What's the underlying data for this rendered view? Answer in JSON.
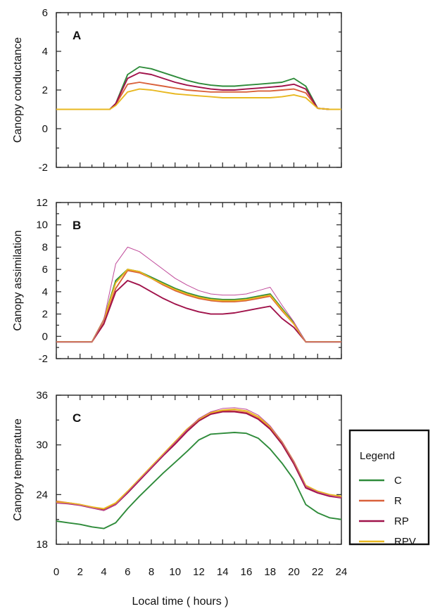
{
  "chart_data": [
    {
      "type": "line",
      "panel": "A",
      "ylabel": "Canopy conductance",
      "xlim": [
        0,
        24
      ],
      "ylim": [
        -2,
        6
      ],
      "yticks": [
        -2,
        0,
        2,
        4,
        6
      ],
      "x": [
        0,
        1,
        2,
        3,
        4,
        4.5,
        5,
        6,
        7,
        8,
        9,
        10,
        11,
        12,
        13,
        14,
        15,
        16,
        17,
        18,
        19,
        20,
        21,
        22,
        23,
        24
      ],
      "series": [
        {
          "name": "C",
          "color": "#2e8b3a",
          "values": [
            1.0,
            1.0,
            1.0,
            1.0,
            1.0,
            1.0,
            1.3,
            2.8,
            3.2,
            3.1,
            2.9,
            2.7,
            2.5,
            2.35,
            2.25,
            2.2,
            2.2,
            2.25,
            2.3,
            2.35,
            2.4,
            2.6,
            2.2,
            1.05,
            1.0,
            1.0
          ]
        },
        {
          "name": "R",
          "color": "#d9603a",
          "values": [
            1.0,
            1.0,
            1.0,
            1.0,
            1.0,
            1.0,
            1.25,
            2.3,
            2.4,
            2.3,
            2.2,
            2.1,
            2.0,
            1.95,
            1.9,
            1.9,
            1.9,
            1.9,
            1.95,
            1.95,
            2.0,
            2.05,
            1.85,
            1.05,
            1.0,
            1.0
          ]
        },
        {
          "name": "RP",
          "color": "#a0124a",
          "values": [
            1.0,
            1.0,
            1.0,
            1.0,
            1.0,
            1.0,
            1.3,
            2.6,
            2.9,
            2.8,
            2.6,
            2.4,
            2.25,
            2.15,
            2.05,
            2.0,
            2.0,
            2.05,
            2.1,
            2.15,
            2.2,
            2.3,
            2.05,
            1.05,
            1.0,
            1.0
          ]
        },
        {
          "name": "RPV",
          "color": "#e8b820",
          "values": [
            1.0,
            1.0,
            1.0,
            1.0,
            1.0,
            1.0,
            1.2,
            1.9,
            2.05,
            2.0,
            1.9,
            1.8,
            1.75,
            1.7,
            1.65,
            1.6,
            1.6,
            1.6,
            1.6,
            1.6,
            1.65,
            1.75,
            1.6,
            1.05,
            1.0,
            1.0
          ]
        }
      ]
    },
    {
      "type": "line",
      "panel": "B",
      "ylabel": "Canopy assimilation",
      "xlim": [
        0,
        24
      ],
      "ylim": [
        -2,
        12
      ],
      "yticks": [
        -2,
        0,
        2,
        4,
        6,
        8,
        10,
        12
      ],
      "x": [
        0,
        1,
        2,
        3,
        4,
        5,
        6,
        7,
        8,
        9,
        10,
        11,
        12,
        13,
        14,
        15,
        16,
        17,
        18,
        19,
        20,
        21,
        22,
        23,
        24
      ],
      "series": [
        {
          "name": "C",
          "color": "#2e8b3a",
          "values": [
            -0.5,
            -0.5,
            -0.5,
            -0.5,
            1.5,
            5.0,
            6.0,
            5.8,
            5.3,
            4.8,
            4.3,
            3.9,
            3.6,
            3.4,
            3.3,
            3.3,
            3.4,
            3.6,
            3.8,
            2.5,
            1.2,
            -0.5,
            -0.5,
            -0.5,
            -0.5
          ]
        },
        {
          "name": "R",
          "color": "#d9603a",
          "values": [
            -0.5,
            -0.5,
            -0.5,
            -0.5,
            1.2,
            4.3,
            5.9,
            5.7,
            5.2,
            4.6,
            4.1,
            3.7,
            3.4,
            3.2,
            3.1,
            3.1,
            3.2,
            3.4,
            3.6,
            2.3,
            1.1,
            -0.5,
            -0.5,
            -0.5,
            -0.5
          ]
        },
        {
          "name": "RP",
          "color": "#a0124a",
          "values": [
            -0.5,
            -0.5,
            -0.5,
            -0.5,
            1.1,
            4.0,
            5.0,
            4.6,
            4.0,
            3.4,
            2.9,
            2.5,
            2.2,
            2.0,
            2.0,
            2.1,
            2.3,
            2.5,
            2.7,
            1.6,
            0.8,
            -0.5,
            -0.5,
            -0.5,
            -0.5
          ]
        },
        {
          "name": "RPV",
          "color": "#e8b820",
          "values": [
            -0.5,
            -0.5,
            -0.5,
            -0.5,
            1.5,
            4.8,
            6.0,
            5.8,
            5.2,
            4.7,
            4.2,
            3.8,
            3.5,
            3.3,
            3.2,
            3.2,
            3.3,
            3.5,
            3.7,
            2.4,
            1.1,
            -0.5,
            -0.5,
            -0.5,
            -0.5
          ]
        },
        {
          "name": "",
          "color": "#c04a9a",
          "thin": true,
          "values": [
            -0.5,
            -0.5,
            -0.5,
            -0.5,
            1.5,
            6.5,
            8.0,
            7.6,
            6.8,
            6.0,
            5.2,
            4.6,
            4.1,
            3.8,
            3.7,
            3.7,
            3.8,
            4.1,
            4.4,
            2.8,
            1.3,
            -0.5,
            -0.5,
            -0.5,
            -0.5
          ]
        }
      ]
    },
    {
      "type": "line",
      "panel": "C",
      "ylabel": "Canopy temperature",
      "xlabel": "Local time ( hours )",
      "xlim": [
        0,
        24
      ],
      "ylim": [
        18,
        36
      ],
      "yticks": [
        18,
        24,
        30,
        36
      ],
      "xticks": [
        0,
        2,
        4,
        6,
        8,
        10,
        12,
        14,
        16,
        18,
        20,
        22,
        24
      ],
      "x": [
        0,
        1,
        2,
        3,
        4,
        5,
        6,
        7,
        8,
        9,
        10,
        11,
        12,
        13,
        14,
        15,
        16,
        17,
        18,
        19,
        20,
        21,
        22,
        23,
        24
      ],
      "series": [
        {
          "name": "C",
          "color": "#2e8b3a",
          "values": [
            20.8,
            20.6,
            20.4,
            20.1,
            19.9,
            20.6,
            22.3,
            23.8,
            25.2,
            26.6,
            27.9,
            29.2,
            30.6,
            31.3,
            31.4,
            31.5,
            31.4,
            30.8,
            29.5,
            27.8,
            25.8,
            22.8,
            21.8,
            21.2,
            21.0
          ]
        },
        {
          "name": "R",
          "color": "#d9603a",
          "values": [
            23.2,
            23.0,
            22.8,
            22.5,
            22.2,
            22.9,
            24.3,
            25.8,
            27.3,
            28.8,
            30.3,
            31.8,
            33.0,
            33.8,
            34.1,
            34.1,
            33.9,
            33.2,
            32.0,
            30.2,
            27.9,
            25.0,
            24.3,
            23.9,
            23.7
          ]
        },
        {
          "name": "RP",
          "color": "#a0124a",
          "values": [
            23.0,
            22.9,
            22.7,
            22.4,
            22.1,
            22.8,
            24.2,
            25.7,
            27.2,
            28.7,
            30.1,
            31.6,
            32.9,
            33.7,
            34.0,
            34.0,
            33.8,
            33.1,
            31.9,
            30.1,
            27.7,
            24.8,
            24.2,
            23.8,
            23.6
          ]
        },
        {
          "name": "RPV",
          "color": "#e8b820",
          "values": [
            23.1,
            23.0,
            22.8,
            22.5,
            22.3,
            23.0,
            24.4,
            25.9,
            27.4,
            28.9,
            30.4,
            31.9,
            33.1,
            33.9,
            34.2,
            34.3,
            34.1,
            33.4,
            32.2,
            30.4,
            28.0,
            25.1,
            24.4,
            24.0,
            23.8
          ]
        },
        {
          "name": "",
          "color": "#c04a9a",
          "thin": true,
          "values": [
            23.0,
            22.9,
            22.7,
            22.4,
            22.1,
            22.8,
            24.3,
            25.8,
            27.3,
            28.8,
            30.3,
            31.8,
            33.2,
            34.0,
            34.4,
            34.5,
            34.3,
            33.6,
            32.3,
            30.4,
            28.0,
            25.0,
            24.3,
            23.9,
            23.6
          ]
        }
      ]
    }
  ],
  "legend": {
    "title": "Legend",
    "placement": "right of panel C",
    "items": [
      {
        "label": "C",
        "color": "#2e8b3a"
      },
      {
        "label": "R",
        "color": "#d9603a"
      },
      {
        "label": "RP",
        "color": "#a0124a"
      },
      {
        "label": "RPV",
        "color": "#e8b820"
      }
    ]
  }
}
